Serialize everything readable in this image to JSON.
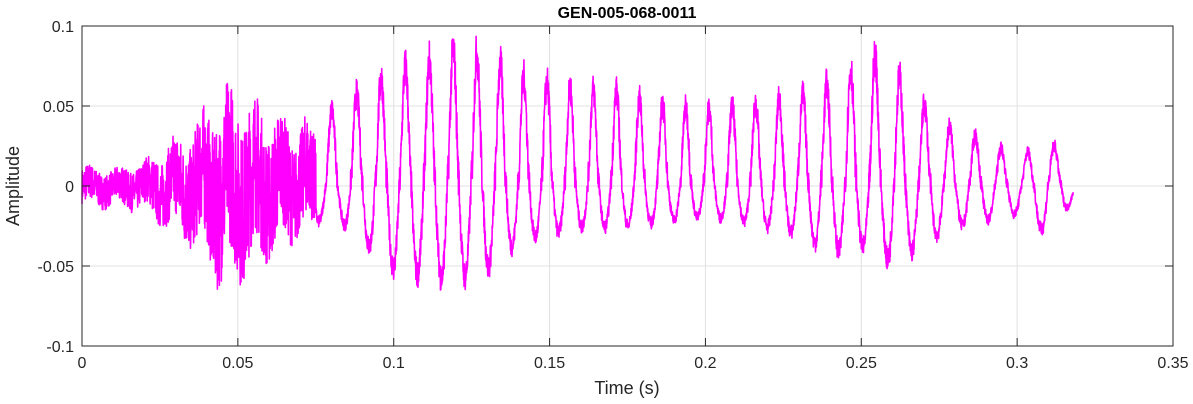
{
  "chart_data": {
    "type": "line",
    "title": "GEN-005-068-0011",
    "xlabel": "Time (s)",
    "ylabel": "Amplitude",
    "xlim": [
      0,
      0.35
    ],
    "ylim": [
      -0.1,
      0.1
    ],
    "grid": true,
    "legend": "none",
    "series_color": "#ff00ff",
    "xticks": [
      {
        "v": 0,
        "label": "0"
      },
      {
        "v": 0.05,
        "label": "0.05"
      },
      {
        "v": 0.1,
        "label": "0.1"
      },
      {
        "v": 0.15,
        "label": "0.15"
      },
      {
        "v": 0.2,
        "label": "0.2"
      },
      {
        "v": 0.25,
        "label": "0.25"
      },
      {
        "v": 0.3,
        "label": "0.3"
      },
      {
        "v": 0.35,
        "label": "0.35"
      }
    ],
    "yticks": [
      {
        "v": -0.1,
        "label": "-0.1"
      },
      {
        "v": -0.05,
        "label": "-0.05"
      },
      {
        "v": 0,
        "label": "0"
      },
      {
        "v": 0.05,
        "label": "0.05"
      },
      {
        "v": 0.1,
        "label": "0.1"
      }
    ],
    "signal_end": 0.318,
    "envelope": [
      {
        "t": 0.0,
        "max": 0.015,
        "min": -0.015
      },
      {
        "t": 0.01,
        "max": 0.012,
        "min": -0.015
      },
      {
        "t": 0.02,
        "max": 0.018,
        "min": -0.018
      },
      {
        "t": 0.03,
        "max": 0.035,
        "min": -0.035
      },
      {
        "t": 0.04,
        "max": 0.055,
        "min": -0.05
      },
      {
        "t": 0.045,
        "max": 0.07,
        "min": -0.075
      },
      {
        "t": 0.05,
        "max": 0.07,
        "min": -0.065
      },
      {
        "t": 0.06,
        "max": 0.055,
        "min": -0.05
      },
      {
        "t": 0.07,
        "max": 0.045,
        "min": -0.035
      },
      {
        "t": 0.08,
        "max": 0.055,
        "min": -0.02
      },
      {
        "t": 0.09,
        "max": 0.07,
        "min": -0.04
      },
      {
        "t": 0.1,
        "max": 0.085,
        "min": -0.06
      },
      {
        "t": 0.11,
        "max": 0.09,
        "min": -0.065
      },
      {
        "t": 0.12,
        "max": 0.1,
        "min": -0.068
      },
      {
        "t": 0.13,
        "max": 0.095,
        "min": -0.06
      },
      {
        "t": 0.14,
        "max": 0.08,
        "min": -0.04
      },
      {
        "t": 0.15,
        "max": 0.075,
        "min": -0.035
      },
      {
        "t": 0.16,
        "max": 0.07,
        "min": -0.03
      },
      {
        "t": 0.17,
        "max": 0.07,
        "min": -0.03
      },
      {
        "t": 0.18,
        "max": 0.062,
        "min": -0.028
      },
      {
        "t": 0.19,
        "max": 0.058,
        "min": -0.025
      },
      {
        "t": 0.2,
        "max": 0.056,
        "min": -0.022
      },
      {
        "t": 0.21,
        "max": 0.058,
        "min": -0.025
      },
      {
        "t": 0.22,
        "max": 0.062,
        "min": -0.03
      },
      {
        "t": 0.23,
        "max": 0.065,
        "min": -0.035
      },
      {
        "t": 0.24,
        "max": 0.075,
        "min": -0.048
      },
      {
        "t": 0.25,
        "max": 0.09,
        "min": -0.045
      },
      {
        "t": 0.255,
        "max": 0.095,
        "min": -0.04
      },
      {
        "t": 0.26,
        "max": 0.085,
        "min": -0.06
      },
      {
        "t": 0.27,
        "max": 0.06,
        "min": -0.04
      },
      {
        "t": 0.28,
        "max": 0.04,
        "min": -0.03
      },
      {
        "t": 0.29,
        "max": 0.035,
        "min": -0.025
      },
      {
        "t": 0.3,
        "max": 0.02,
        "min": -0.02
      },
      {
        "t": 0.31,
        "max": 0.035,
        "min": -0.035
      },
      {
        "t": 0.318,
        "max": 0.012,
        "min": -0.01
      }
    ]
  }
}
